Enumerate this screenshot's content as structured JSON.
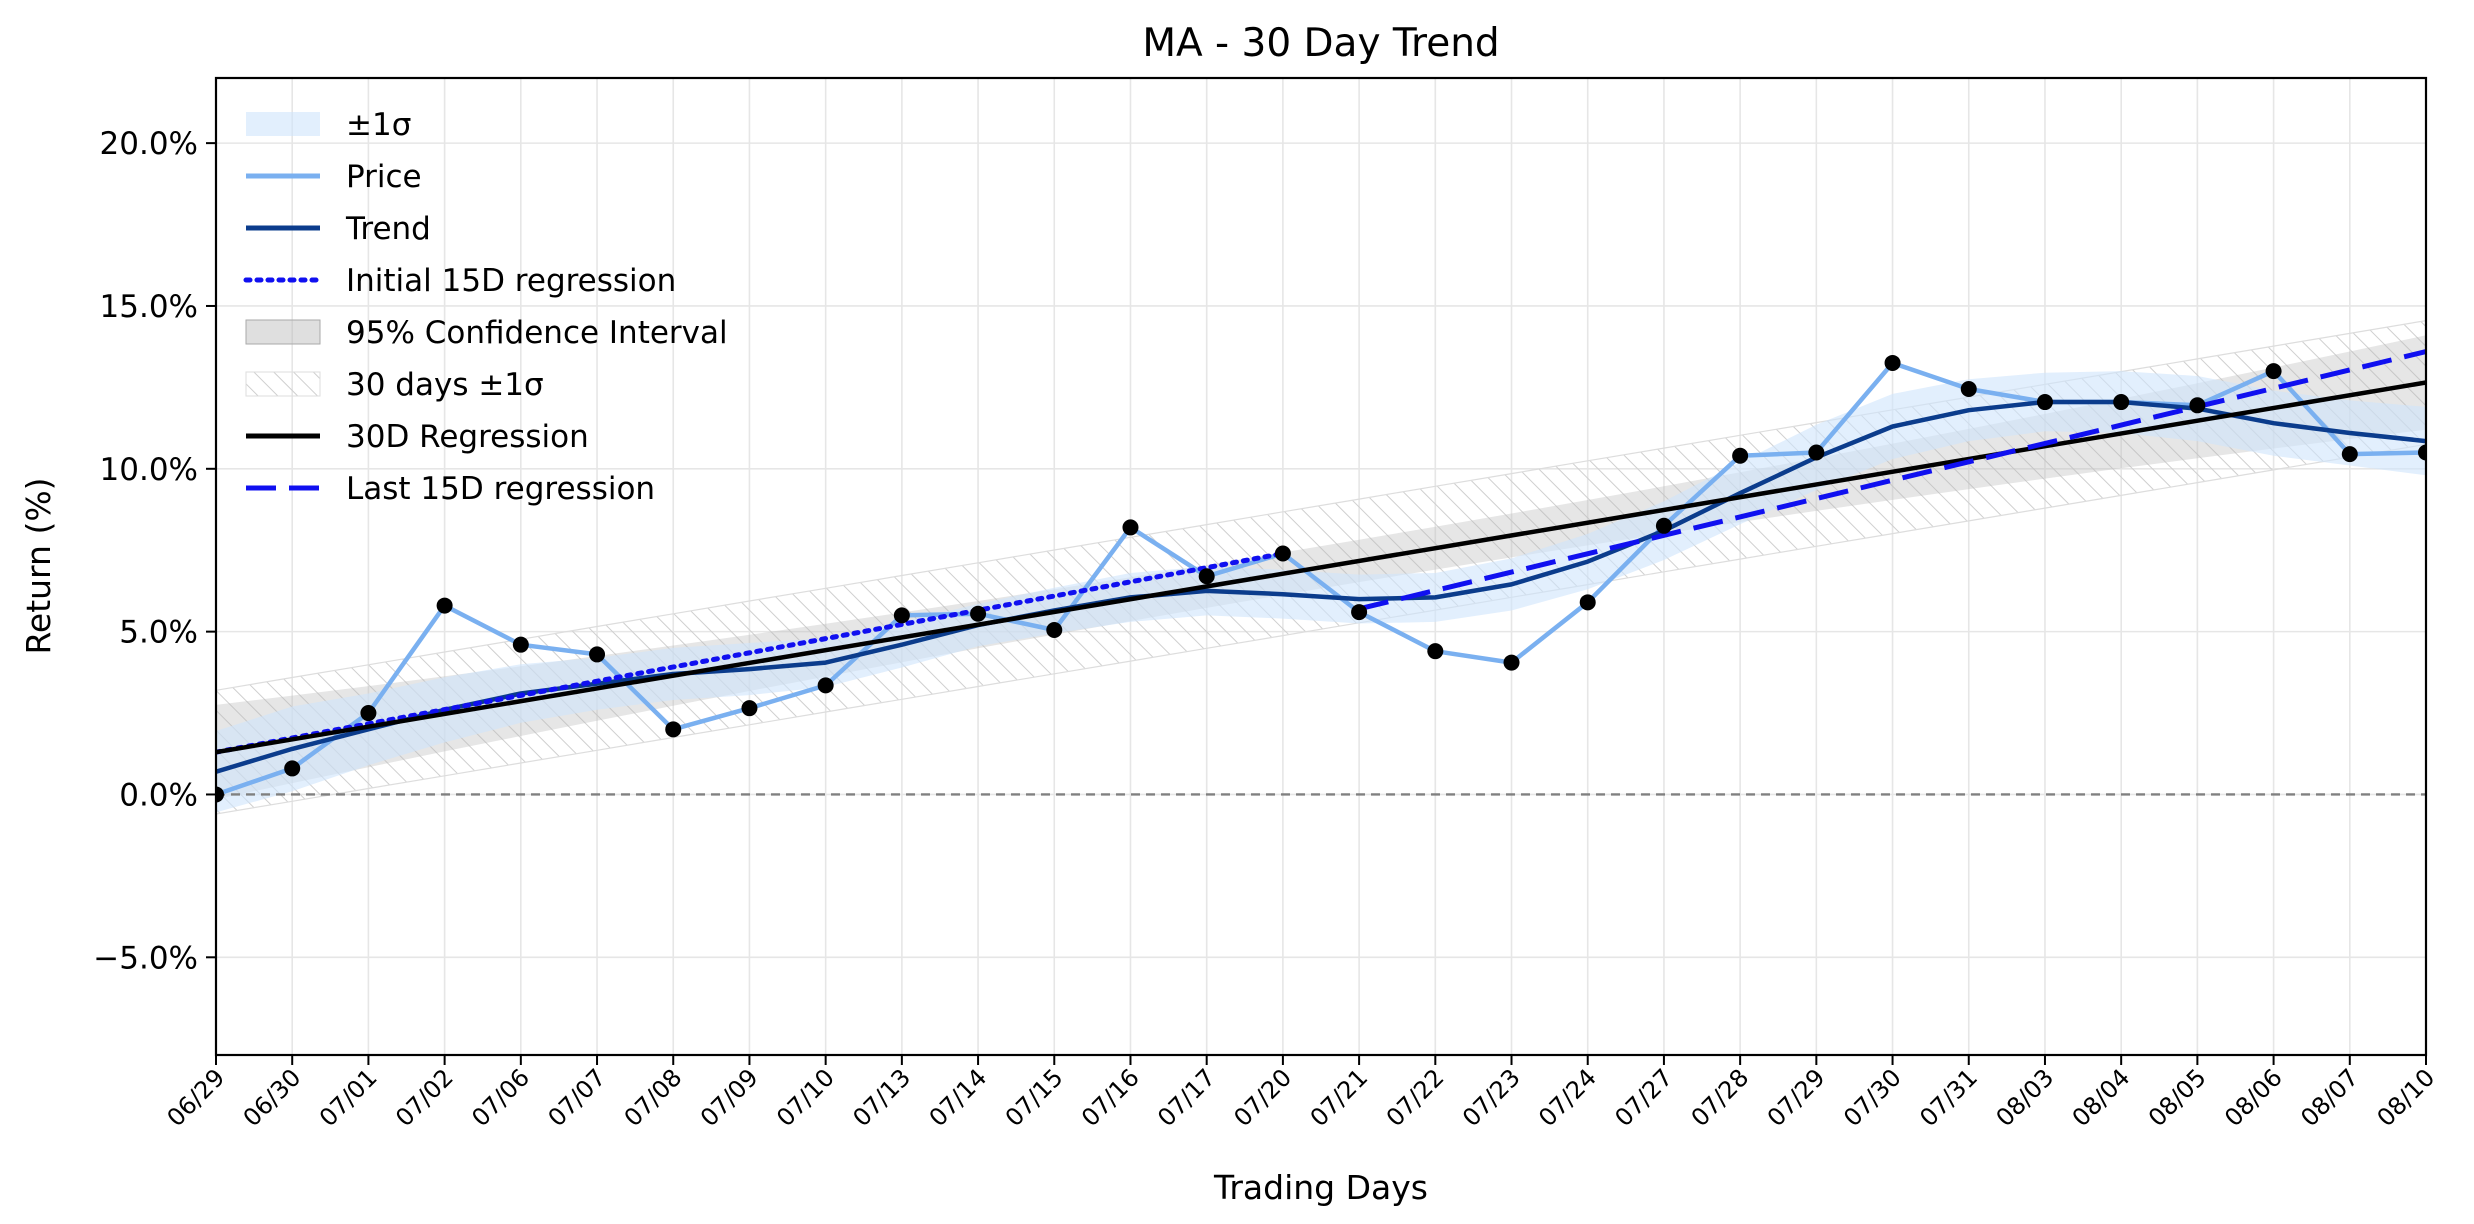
{
  "chart_data": {
    "type": "line",
    "title": "MA - 30 Day Trend",
    "xlabel": "Trading Days",
    "ylabel": "Return (%)",
    "x": [
      "06/29",
      "06/30",
      "07/01",
      "07/02",
      "07/06",
      "07/07",
      "07/08",
      "07/09",
      "07/10",
      "07/13",
      "07/14",
      "07/15",
      "07/16",
      "07/17",
      "07/20",
      "07/21",
      "07/22",
      "07/23",
      "07/24",
      "07/27",
      "07/28",
      "07/29",
      "07/30",
      "07/31",
      "08/03",
      "08/04",
      "08/05",
      "08/06",
      "08/07",
      "08/10"
    ],
    "ylim": [
      -8.0,
      22.0
    ],
    "yticks": [
      -5.0,
      0.0,
      5.0,
      10.0,
      15.0,
      20.0
    ],
    "ytick_labels": [
      "−5.0%",
      "0.0%",
      "5.0%",
      "10.0%",
      "15.0%",
      "20.0%"
    ],
    "grid": true,
    "legend_position": "top-left",
    "zero_line": true,
    "legend": [
      {
        "key": "sigma_band",
        "label": "±1σ"
      },
      {
        "key": "price",
        "label": "Price"
      },
      {
        "key": "trend",
        "label": "Trend"
      },
      {
        "key": "initial_reg",
        "label": "Initial 15D regression"
      },
      {
        "key": "ci",
        "label": "95% Confidence Interval"
      },
      {
        "key": "band30",
        "label": "30 days ±1σ"
      },
      {
        "key": "reg30",
        "label": "30D Regression"
      },
      {
        "key": "last_reg",
        "label": "Last 15D regression"
      }
    ],
    "colors": {
      "price": "#7ab0f0",
      "trend": "#0b3c8c",
      "initial_reg": "#1010f0",
      "last_reg": "#1010f0",
      "reg30": "#000000",
      "ci": "#b8b8b8",
      "sigma_band": "#cfe4fb",
      "band30_hatch": "#cfcfcf",
      "markers": "#000000",
      "zero_line": "#808080",
      "grid": "#e6e6e6"
    },
    "series": {
      "price": [
        0.0,
        0.8,
        2.5,
        5.8,
        4.6,
        4.3,
        2.0,
        2.65,
        3.35,
        5.5,
        5.55,
        5.05,
        8.2,
        6.7,
        7.4,
        5.6,
        4.4,
        4.05,
        5.9,
        8.25,
        10.4,
        10.5,
        13.25,
        12.45,
        12.05,
        12.05,
        11.95,
        13.0,
        10.45,
        10.5
      ],
      "trend": [
        0.7,
        1.4,
        2.0,
        2.6,
        3.1,
        3.4,
        3.7,
        3.85,
        4.05,
        4.6,
        5.2,
        5.65,
        6.05,
        6.25,
        6.15,
        6.0,
        6.05,
        6.45,
        7.15,
        8.1,
        9.25,
        10.35,
        11.3,
        11.8,
        12.05,
        12.05,
        11.85,
        11.4,
        11.1,
        10.85
      ],
      "sigma_band_lower": [
        -0.55,
        0.1,
        0.9,
        1.6,
        2.2,
        2.6,
        2.9,
        3.05,
        3.3,
        3.9,
        4.55,
        4.95,
        5.3,
        5.5,
        5.4,
        5.25,
        5.3,
        5.65,
        6.3,
        7.2,
        8.3,
        9.35,
        10.3,
        10.85,
        11.15,
        11.1,
        10.85,
        10.4,
        10.1,
        9.8
      ],
      "sigma_band_upper": [
        1.95,
        2.7,
        3.1,
        3.6,
        4.0,
        4.2,
        4.5,
        4.65,
        4.8,
        5.3,
        5.85,
        6.35,
        6.8,
        7.0,
        6.9,
        6.75,
        6.8,
        7.25,
        8.0,
        9.0,
        10.2,
        11.35,
        12.3,
        12.75,
        12.95,
        13.0,
        12.85,
        12.4,
        12.1,
        11.9
      ],
      "initial_reg": {
        "start_index": 0,
        "end_index": 14,
        "start_value": 1.3,
        "end_value": 7.4
      },
      "last_reg": {
        "start_index": 15,
        "end_index": 29,
        "start_value": 5.7,
        "end_value": 13.6
      },
      "reg30": {
        "start_value": 1.3,
        "end_value": 12.65
      },
      "ci_halfwidth": {
        "start": 1.45,
        "mid": 0.65,
        "end": 1.45
      },
      "band30_halfwidth": 1.9
    }
  }
}
